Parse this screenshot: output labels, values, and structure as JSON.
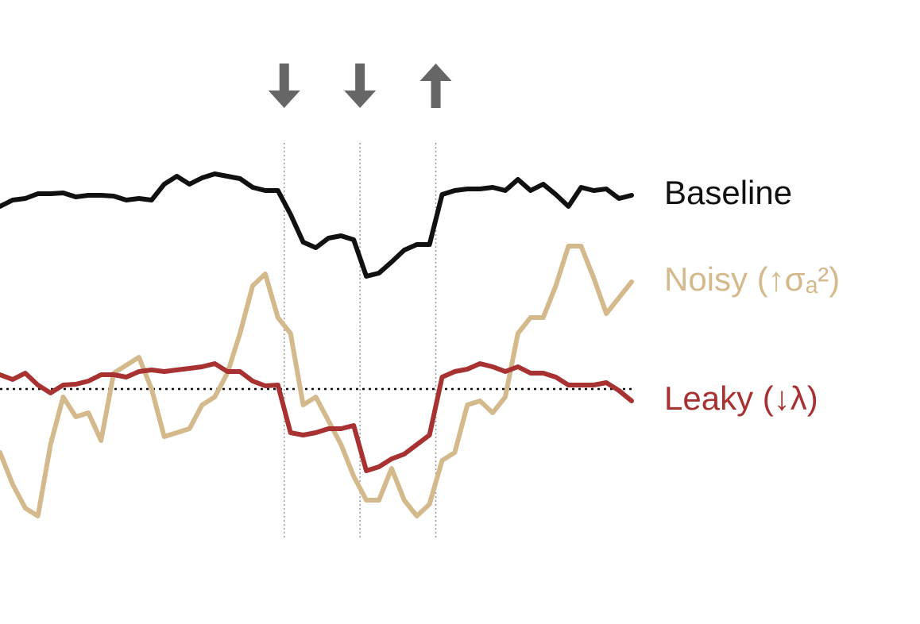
{
  "chart_data": {
    "type": "line",
    "x": [
      0,
      2,
      4,
      6,
      8,
      10,
      12,
      14,
      16,
      18,
      20,
      22,
      24,
      26,
      28,
      30,
      32,
      34,
      36,
      38,
      40,
      42,
      44,
      46,
      48,
      50,
      52,
      54,
      56,
      58,
      60,
      62,
      64,
      66,
      68,
      70,
      72,
      74,
      76,
      78,
      80,
      82,
      84,
      86,
      88,
      90,
      92,
      94,
      96,
      98,
      100
    ],
    "xlim": [
      0,
      100
    ],
    "ylim": [
      0,
      100
    ],
    "series": [
      {
        "name": "Baseline",
        "color": "#111111",
        "values": [
          84,
          85.6,
          86,
          87.2,
          87.2,
          87.4,
          86.4,
          86.8,
          86.8,
          86.6,
          85.6,
          86,
          85.6,
          89.6,
          91.6,
          89.6,
          91.2,
          92.2,
          91.6,
          91,
          88.8,
          88,
          88,
          82,
          75,
          73.6,
          76,
          76.6,
          75.6,
          66.4,
          67.2,
          70,
          73,
          74.4,
          74.4,
          87,
          88,
          88.4,
          88.4,
          88.8,
          88,
          90.8,
          88,
          89.6,
          87,
          84,
          88.8,
          88,
          88.4,
          86,
          86.8
        ]
      },
      {
        "name": "Noisy (↑σₐ²)",
        "color": "#d4b98c",
        "values": [
          22,
          14,
          8,
          6,
          24,
          36,
          31,
          32,
          25,
          42,
          44,
          46,
          38,
          26,
          27,
          28,
          34,
          36,
          42,
          52,
          64,
          67,
          56,
          52,
          34,
          36,
          30,
          24,
          16,
          10,
          10,
          18,
          10,
          6,
          9,
          20,
          22,
          34,
          35,
          32,
          36,
          52,
          56,
          56,
          64,
          74,
          74,
          66,
          57,
          61,
          65
        ]
      },
      {
        "name": "Leaky (↓λ)",
        "color": "#a83232",
        "values": [
          41.6,
          40.4,
          42,
          39,
          37,
          39,
          39.2,
          40,
          41.6,
          41.6,
          41,
          42.4,
          42.8,
          42.4,
          42.8,
          43.2,
          43.6,
          44.4,
          42.4,
          42.4,
          40,
          38.8,
          39,
          27,
          26.4,
          27,
          28,
          28,
          28.8,
          17.4,
          18.4,
          20.4,
          21.6,
          24,
          26.4,
          41,
          42.4,
          43,
          44.4,
          43.6,
          42.4,
          43.6,
          42,
          42,
          41,
          39,
          39,
          39,
          39.6,
          37.6,
          35
        ]
      }
    ],
    "reference_line": 38,
    "events": [
      {
        "x": 45,
        "direction": "down"
      },
      {
        "x": 57,
        "direction": "down"
      },
      {
        "x": 69,
        "direction": "up"
      }
    ]
  }
}
